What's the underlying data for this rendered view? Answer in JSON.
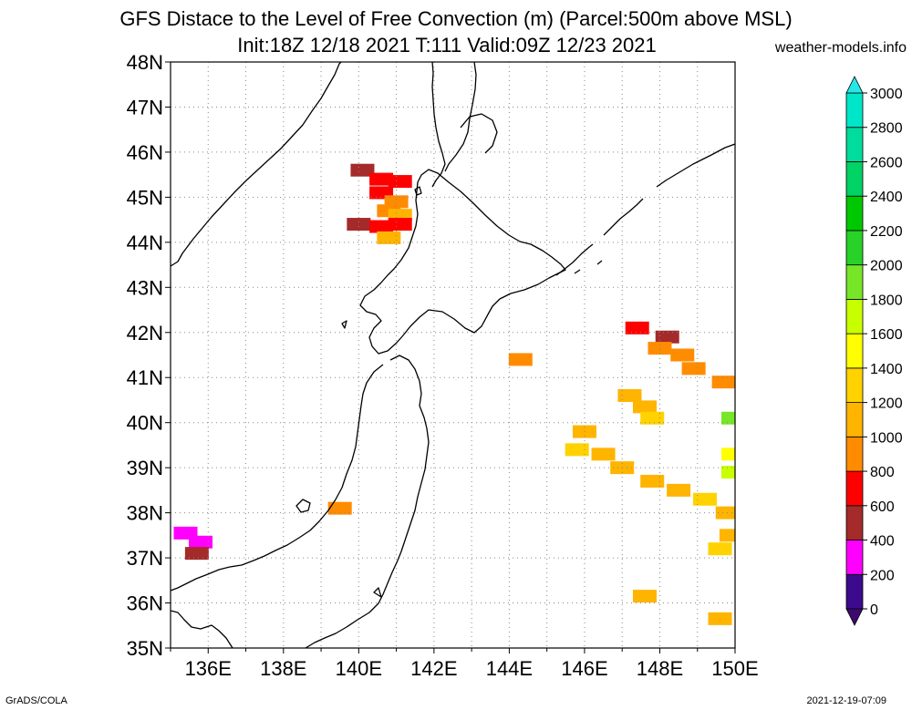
{
  "header": {
    "title_line1": "GFS Distace to the Level of Free Convection (m) (Parcel:500m above MSL)",
    "title_line2": "Init:18Z 12/18 2021 T:111 Valid:09Z 12/23 2021",
    "source": "weather-models.info"
  },
  "footer": {
    "left": "GrADS/COLA",
    "right": "2021-12-19-07:09"
  },
  "map": {
    "lat_labels": [
      "35N",
      "36N",
      "37N",
      "38N",
      "39N",
      "40N",
      "41N",
      "42N",
      "43N",
      "44N",
      "45N",
      "46N",
      "47N",
      "48N"
    ],
    "lon_labels": [
      "136E",
      "138E",
      "140E",
      "142E",
      "144E",
      "146E",
      "148E",
      "150E"
    ],
    "lat_range": [
      35,
      48
    ],
    "lon_range": [
      135,
      150
    ],
    "grid": "dotted",
    "coastline_color": "#000000"
  },
  "colorbar": {
    "levels": [
      "0",
      "200",
      "400",
      "600",
      "800",
      "1000",
      "1200",
      "1400",
      "1600",
      "1800",
      "2000",
      "2200",
      "2400",
      "2600",
      "2800",
      "3000"
    ],
    "colors": [
      "#3c0a8c",
      "#ff00ff",
      "#a52a2a",
      "#ff0000",
      "#ff8c00",
      "#ffb400",
      "#ffd200",
      "#ffff00",
      "#c8ff00",
      "#78e628",
      "#28d228",
      "#00c800",
      "#00d264",
      "#00dc9b",
      "#00e6c8",
      "#00f0f0"
    ],
    "over_color": "#28e6e6",
    "under_color": "#3c0a6e"
  },
  "field_cells": [
    {
      "lon": 140.1,
      "lat": 45.6,
      "level": 2
    },
    {
      "lon": 140.6,
      "lat": 45.4,
      "level": 3
    },
    {
      "lon": 141.1,
      "lat": 45.35,
      "level": 3
    },
    {
      "lon": 140.6,
      "lat": 45.1,
      "level": 3
    },
    {
      "lon": 141.0,
      "lat": 44.9,
      "level": 4
    },
    {
      "lon": 140.8,
      "lat": 44.7,
      "level": 4
    },
    {
      "lon": 141.1,
      "lat": 44.6,
      "level": 5
    },
    {
      "lon": 140.0,
      "lat": 44.4,
      "level": 2
    },
    {
      "lon": 140.6,
      "lat": 44.35,
      "level": 3
    },
    {
      "lon": 141.1,
      "lat": 44.4,
      "level": 3
    },
    {
      "lon": 140.8,
      "lat": 44.1,
      "level": 5
    },
    {
      "lon": 144.3,
      "lat": 41.4,
      "level": 4
    },
    {
      "lon": 147.4,
      "lat": 42.1,
      "level": 3
    },
    {
      "lon": 148.2,
      "lat": 41.9,
      "level": 2
    },
    {
      "lon": 148.0,
      "lat": 41.65,
      "level": 4
    },
    {
      "lon": 148.6,
      "lat": 41.5,
      "level": 4
    },
    {
      "lon": 148.9,
      "lat": 41.2,
      "level": 4
    },
    {
      "lon": 149.7,
      "lat": 40.9,
      "level": 4
    },
    {
      "lon": 147.2,
      "lat": 40.6,
      "level": 5
    },
    {
      "lon": 147.6,
      "lat": 40.35,
      "level": 5
    },
    {
      "lon": 147.8,
      "lat": 40.1,
      "level": 6
    },
    {
      "lon": 146.0,
      "lat": 39.8,
      "level": 5
    },
    {
      "lon": 145.8,
      "lat": 39.4,
      "level": 6
    },
    {
      "lon": 146.5,
      "lat": 39.3,
      "level": 5
    },
    {
      "lon": 147.0,
      "lat": 39.0,
      "level": 5
    },
    {
      "lon": 147.8,
      "lat": 38.7,
      "level": 5
    },
    {
      "lon": 148.5,
      "lat": 38.5,
      "level": 5
    },
    {
      "lon": 149.2,
      "lat": 38.3,
      "level": 6
    },
    {
      "lon": 149.8,
      "lat": 38.0,
      "level": 5
    },
    {
      "lon": 149.9,
      "lat": 37.5,
      "level": 5
    },
    {
      "lon": 149.6,
      "lat": 37.2,
      "level": 6
    },
    {
      "lon": 149.95,
      "lat": 40.1,
      "level": 9
    },
    {
      "lon": 149.95,
      "lat": 39.3,
      "level": 7
    },
    {
      "lon": 149.95,
      "lat": 38.9,
      "level": 8
    },
    {
      "lon": 139.5,
      "lat": 38.1,
      "level": 4
    },
    {
      "lon": 147.6,
      "lat": 36.15,
      "level": 5
    },
    {
      "lon": 149.6,
      "lat": 35.65,
      "level": 5
    },
    {
      "lon": 135.8,
      "lat": 37.35,
      "level": 1
    },
    {
      "lon": 135.4,
      "lat": 37.55,
      "level": 1
    },
    {
      "lon": 135.7,
      "lat": 37.1,
      "level": 2
    }
  ]
}
